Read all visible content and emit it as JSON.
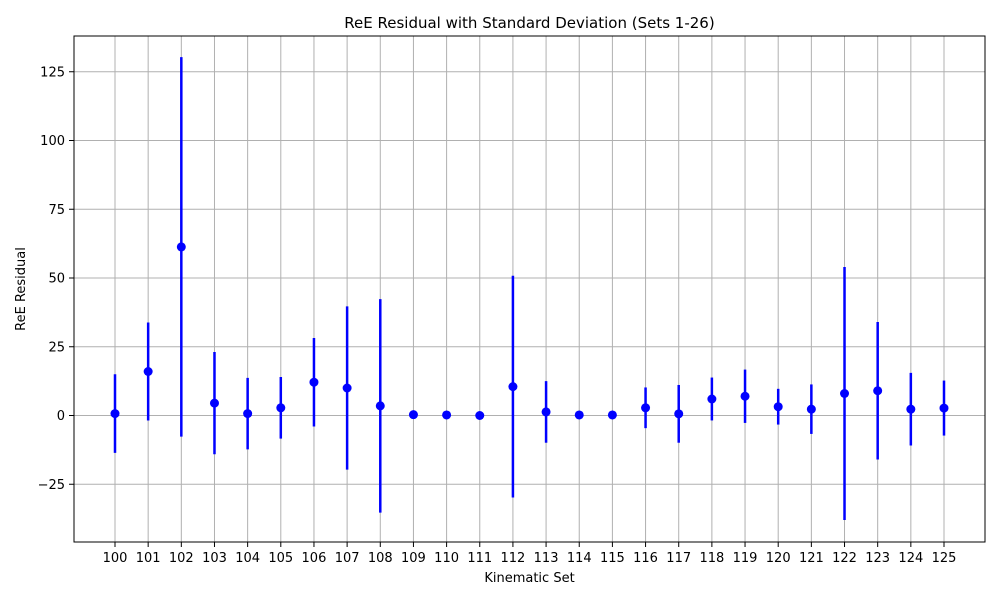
{
  "chart_data": {
    "type": "scatter",
    "title": "ReE Residual with Standard Deviation (Sets 1-26)",
    "xlabel": "Kinematic Set",
    "ylabel": "ReE Residual",
    "ylim": [
      -46,
      138
    ],
    "yticks": [
      -25,
      0,
      25,
      50,
      75,
      100,
      125
    ],
    "grid": true,
    "marker_color": "#0000ff",
    "series": [
      {
        "categories": [
          "100",
          "101",
          "102",
          "103",
          "104",
          "105",
          "106",
          "107",
          "108",
          "109",
          "110",
          "111",
          "112",
          "113",
          "114",
          "115",
          "116",
          "117",
          "118",
          "119",
          "120",
          "121",
          "122",
          "123",
          "124",
          "125"
        ],
        "values": [
          0.7,
          16.0,
          61.3,
          4.5,
          0.7,
          2.8,
          12.1,
          10.0,
          3.5,
          0.3,
          0.2,
          0.0,
          10.5,
          1.3,
          0.2,
          0.2,
          2.8,
          0.6,
          6.0,
          7.0,
          3.2,
          2.3,
          8.0,
          9.0,
          2.3,
          2.7
        ],
        "errors": [
          14.3,
          17.8,
          69.0,
          18.6,
          13.0,
          11.2,
          16.1,
          29.7,
          38.8,
          0.0,
          0.0,
          0.0,
          40.3,
          11.2,
          0.0,
          0.0,
          7.4,
          10.5,
          7.8,
          9.7,
          6.5,
          9.0,
          46.0,
          25.0,
          13.2,
          10.0
        ]
      }
    ]
  }
}
